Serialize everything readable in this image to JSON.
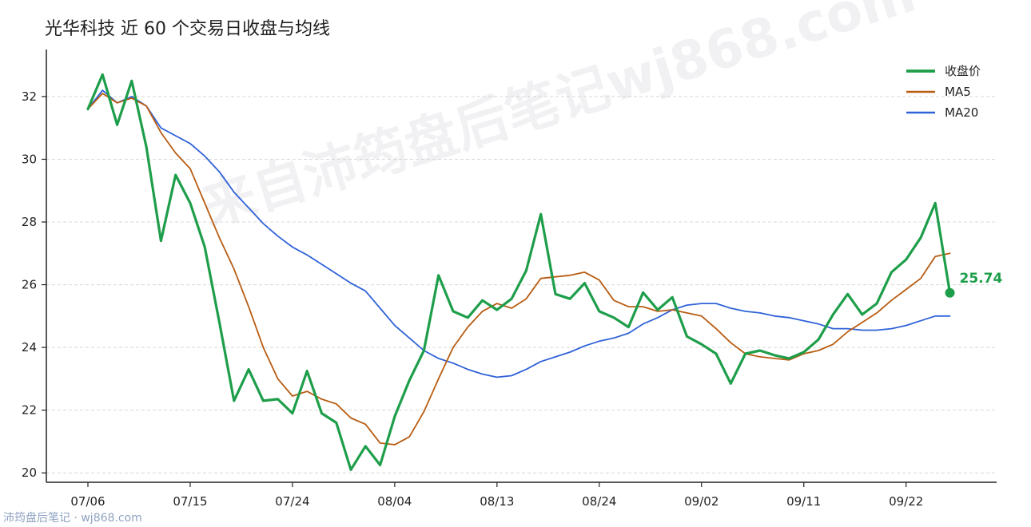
{
  "title": "光华科技 近 60 个交易日收盘与均线",
  "watermark": "来自沛筠盘后笔记wj868.com",
  "footer": "沛筠盘后笔记 · wj868.com",
  "colors": {
    "close": "#1e9e4a",
    "ma5": "#b85c12",
    "ma20": "#2f62d8",
    "grid": "#d8d8d8",
    "axis": "#222222"
  },
  "chart_data": {
    "type": "line",
    "title": "光华科技 近 60 个交易日收盘与均线",
    "xlabel": "",
    "ylabel": "",
    "ylim": [
      19.7,
      33.5
    ],
    "yticks": [
      20,
      22,
      24,
      26,
      28,
      30,
      32
    ],
    "xtick_labels": [
      "07/06",
      "07/15",
      "07/24",
      "08/04",
      "08/13",
      "08/24",
      "09/02",
      "09/11",
      "09/22"
    ],
    "xtick_indices": [
      0,
      7,
      14,
      21,
      28,
      35,
      42,
      49,
      56
    ],
    "grid": "horizontal-dashed",
    "legend": "top-right",
    "last_value_label": "25.74",
    "series": [
      {
        "name": "收盘价",
        "values": [
          31.6,
          32.7,
          31.1,
          32.5,
          30.4,
          27.4,
          29.5,
          28.6,
          27.2,
          24.8,
          22.3,
          23.3,
          22.3,
          22.35,
          21.9,
          23.25,
          21.9,
          21.6,
          20.1,
          20.85,
          20.25,
          21.8,
          22.95,
          23.9,
          26.3,
          25.15,
          24.95,
          25.5,
          25.2,
          25.55,
          26.45,
          28.25,
          25.7,
          25.55,
          26.05,
          25.15,
          24.95,
          24.65,
          25.75,
          25.2,
          25.6,
          24.35,
          24.1,
          23.8,
          22.85,
          23.8,
          23.9,
          23.75,
          23.65,
          23.85,
          24.25,
          25.05,
          25.7,
          25.05,
          25.4,
          26.4,
          26.8,
          27.5,
          28.6,
          25.74
        ]
      },
      {
        "name": "MA5",
        "values": [
          31.6,
          32.1,
          31.8,
          31.95,
          31.7,
          30.85,
          30.2,
          29.7,
          28.6,
          27.5,
          26.5,
          25.3,
          24.0,
          23.0,
          22.45,
          22.6,
          22.35,
          22.2,
          21.75,
          21.55,
          20.95,
          20.9,
          21.15,
          21.95,
          23.0,
          24.0,
          24.65,
          25.15,
          25.4,
          25.25,
          25.55,
          26.2,
          26.25,
          26.3,
          26.4,
          26.15,
          25.5,
          25.3,
          25.3,
          25.15,
          25.2,
          25.1,
          25.0,
          24.6,
          24.15,
          23.8,
          23.7,
          23.65,
          23.6,
          23.8,
          23.9,
          24.1,
          24.5,
          24.8,
          25.1,
          25.5,
          25.85,
          26.2,
          26.9,
          27.0
        ]
      },
      {
        "name": "MA20",
        "values": [
          31.6,
          32.2,
          31.8,
          32.0,
          31.7,
          31.0,
          30.75,
          30.5,
          30.1,
          29.6,
          28.95,
          28.45,
          27.95,
          27.55,
          27.2,
          26.95,
          26.65,
          26.35,
          26.05,
          25.8,
          25.25,
          24.7,
          24.3,
          23.9,
          23.65,
          23.5,
          23.3,
          23.15,
          23.05,
          23.1,
          23.3,
          23.55,
          23.7,
          23.85,
          24.05,
          24.2,
          24.3,
          24.45,
          24.75,
          24.95,
          25.2,
          25.35,
          25.4,
          25.4,
          25.25,
          25.15,
          25.1,
          25.0,
          24.95,
          24.85,
          24.75,
          24.6,
          24.6,
          24.55,
          24.55,
          24.6,
          24.7,
          24.85,
          25.0,
          25.0
        ]
      }
    ]
  }
}
